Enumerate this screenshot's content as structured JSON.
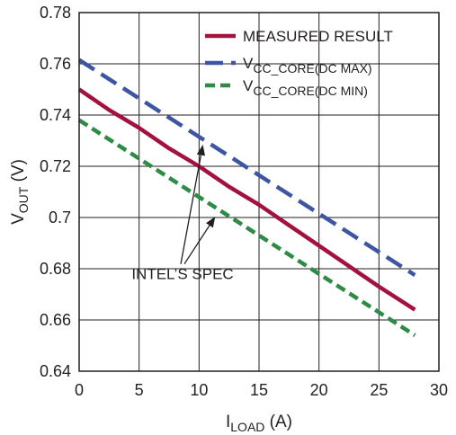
{
  "chart_data": {
    "type": "line",
    "xlabel": {
      "main": "I",
      "sub": "LOAD",
      "unit": " (A)"
    },
    "ylabel": {
      "main": "V",
      "sub": "OUT",
      "unit": " (V)"
    },
    "xlim": [
      0,
      30
    ],
    "ylim": [
      0.64,
      0.78
    ],
    "x_ticks": [
      0,
      5,
      10,
      15,
      20,
      25,
      30
    ],
    "y_ticks": [
      0.64,
      0.66,
      0.68,
      0.7,
      0.72,
      0.74,
      0.76,
      0.78
    ],
    "x_tick_labels": [
      "0",
      "5",
      "10",
      "15",
      "20",
      "25",
      "30"
    ],
    "y_tick_labels": [
      "0.64",
      "0.66",
      "0.68",
      "0.7",
      "0.72",
      "0.74",
      "0.76",
      "0.78"
    ],
    "grid": true,
    "legend_position": "top-right",
    "series": [
      {
        "name": "MEASURED RESULT",
        "color": "#a3123f",
        "dash": "solid",
        "x": [
          0,
          2.5,
          5,
          7.5,
          10,
          12.5,
          15,
          17.5,
          20,
          22.5,
          25,
          28
        ],
        "y": [
          0.75,
          0.742,
          0.735,
          0.727,
          0.72,
          0.712,
          0.705,
          0.697,
          0.689,
          0.681,
          0.673,
          0.664
        ]
      },
      {
        "name": "VCC_CORE(DC MAX)",
        "legend_main": "V",
        "legend_sub": "CC_CORE(DC MAX)",
        "color": "#3d55a3",
        "dash": "long-dash",
        "x": [
          0,
          28
        ],
        "y": [
          0.7615,
          0.6775
        ]
      },
      {
        "name": "VCC_CORE(DC MIN)",
        "legend_main": "V",
        "legend_sub": "CC_CORE(DC MIN)",
        "color": "#2e8b45",
        "dash": "dash",
        "x": [
          0,
          28
        ],
        "y": [
          0.738,
          0.654
        ]
      }
    ],
    "annotations": [
      {
        "text": "INTEL’S SPEC",
        "at": [
          10.5,
          0.678
        ],
        "arrows_to": [
          [
            10.3,
            0.728
          ],
          [
            11.3,
            0.7
          ]
        ]
      }
    ]
  }
}
